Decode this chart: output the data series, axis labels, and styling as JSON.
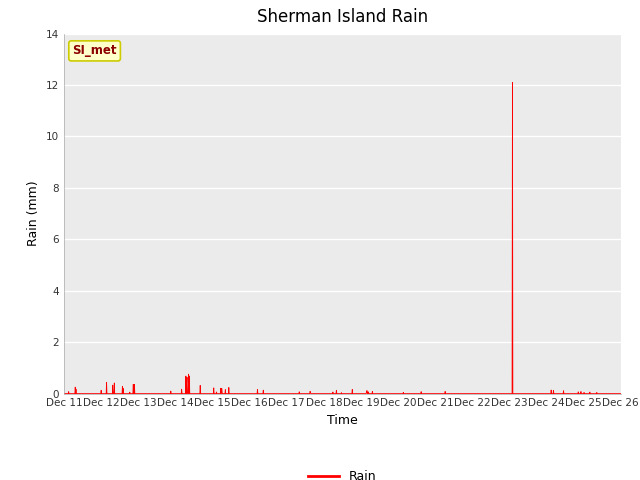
{
  "title": "Sherman Island Rain",
  "xlabel": "Time",
  "ylabel": "Rain (mm)",
  "ylim": [
    0,
    14
  ],
  "yticks": [
    0,
    2,
    4,
    6,
    8,
    10,
    12,
    14
  ],
  "line_color": "#ff0000",
  "line_width": 0.6,
  "legend_label": "Rain",
  "legend_color": "#ff0000",
  "annotation_text": "SI_met",
  "annotation_color": "#8b0000",
  "annotation_bg": "#ffffcc",
  "annotation_border": "#cccc00",
  "figure_bg_color": "#ffffff",
  "plot_bg_color": "#ebebeb",
  "x_tick_labels": [
    "Dec 11",
    "Dec 12",
    "Dec 13",
    "Dec 14",
    "Dec 15",
    "Dec 16",
    "Dec 17",
    "Dec 18",
    "Dec 19",
    "Dec 20",
    "Dec 21",
    "Dec 22",
    "Dec 23",
    "Dec 24",
    "Dec 25",
    "Dec 26"
  ],
  "title_fontsize": 12,
  "axis_label_fontsize": 9,
  "tick_fontsize": 7.5,
  "grid_color": "#ffffff",
  "grid_linewidth": 1.0,
  "spike_day": 12.08,
  "spike_value": 12.1
}
